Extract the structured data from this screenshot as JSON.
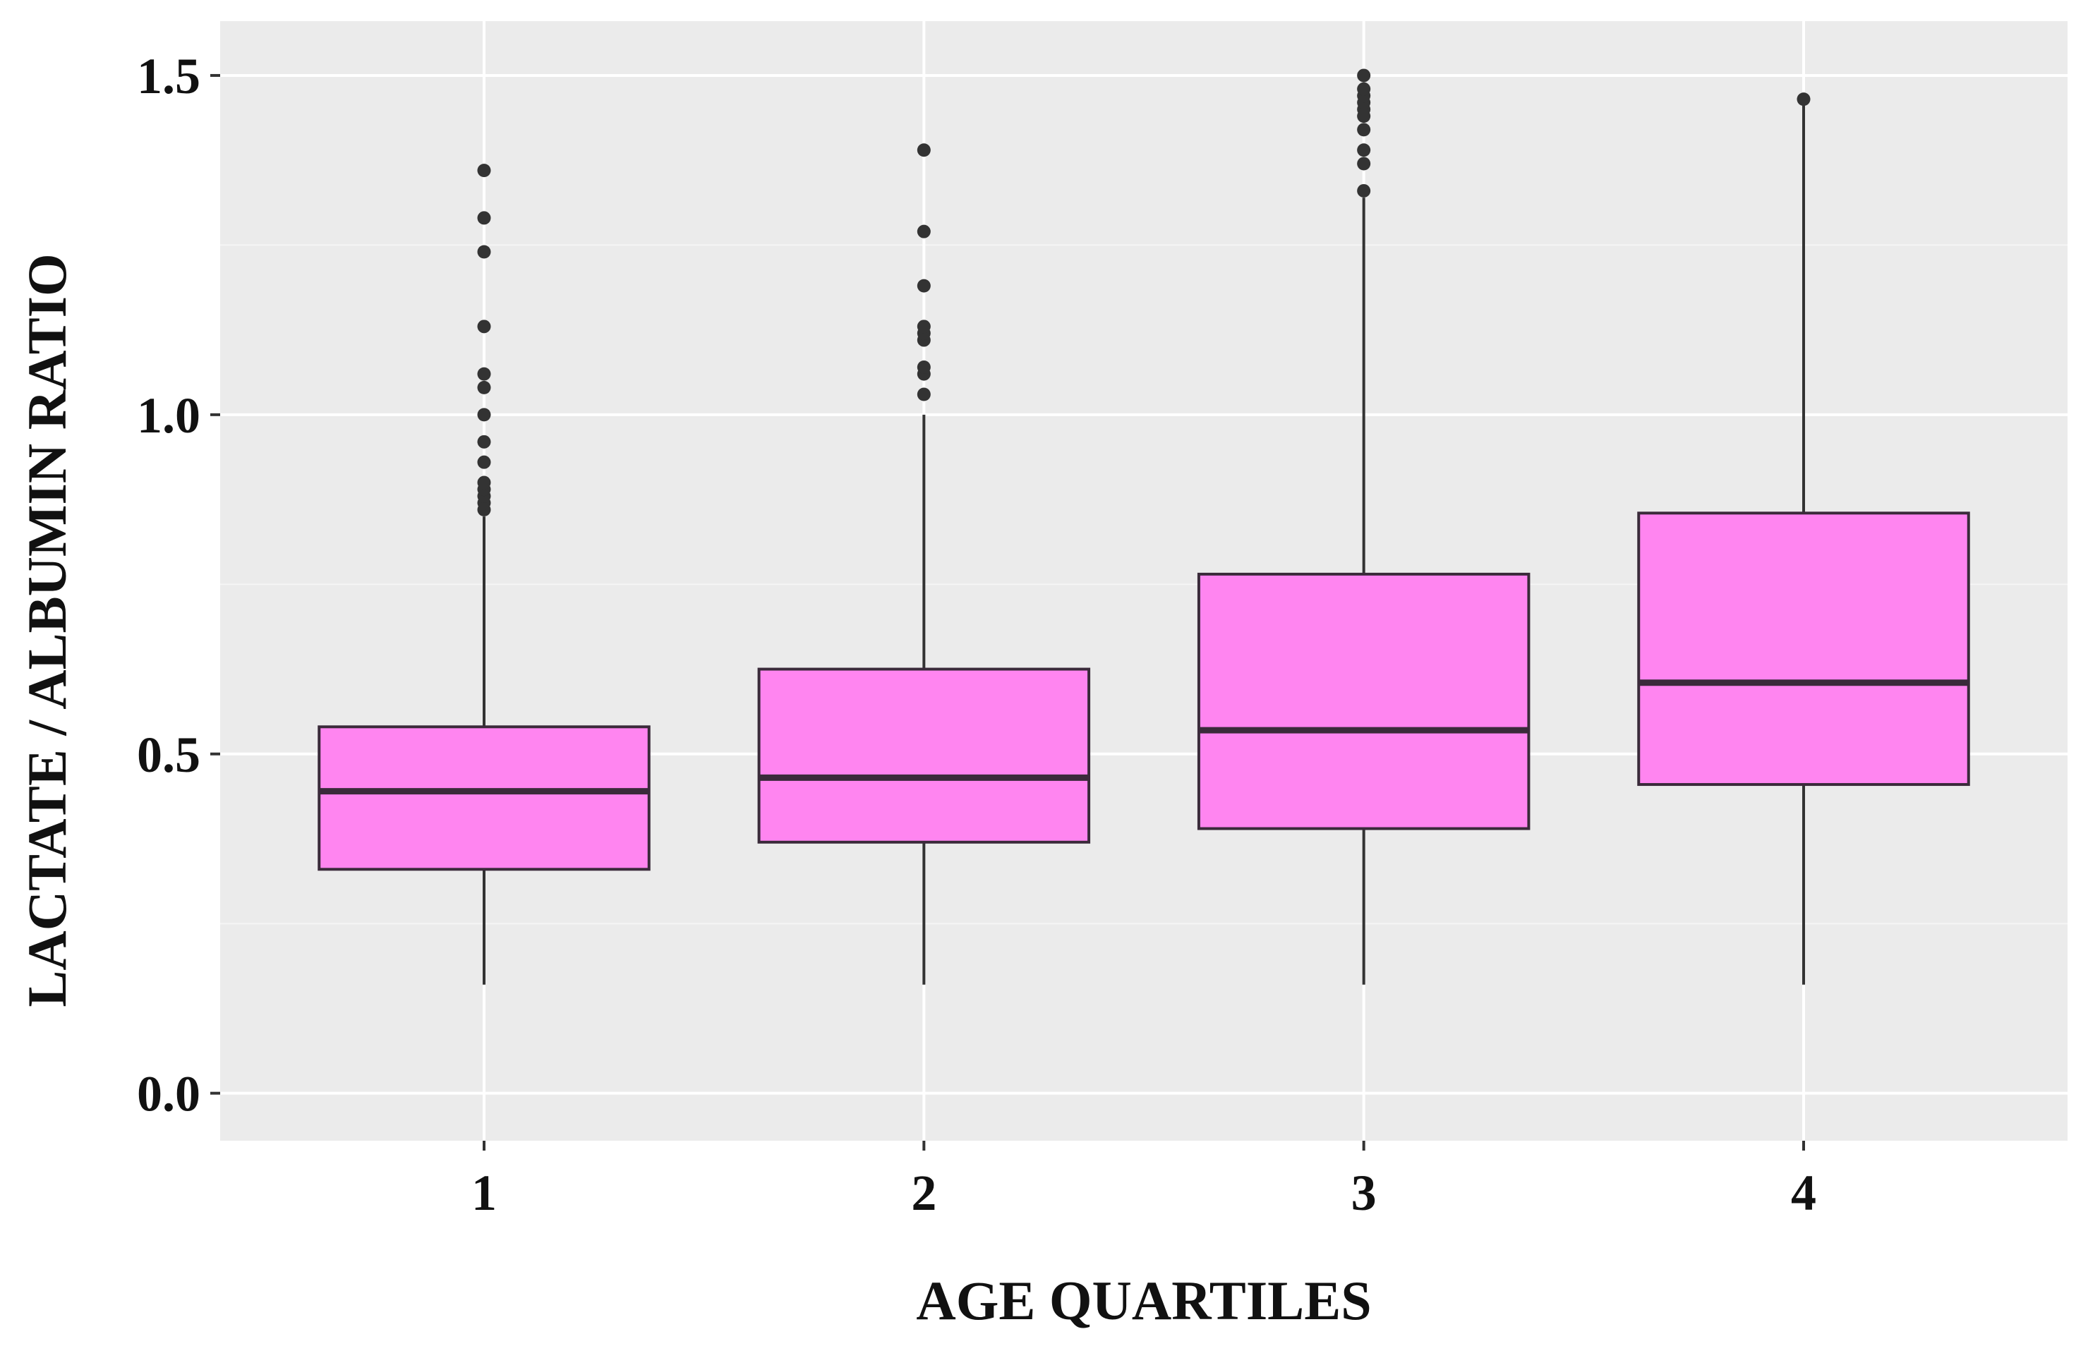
{
  "chart_data": {
    "type": "boxplot",
    "title": "",
    "xlabel": "AGE QUARTILES",
    "ylabel": "LACTATE / ALBUMIN RATIO",
    "ylim": [
      -0.07,
      1.58
    ],
    "yticks": [
      0.0,
      0.5,
      1.0,
      1.5
    ],
    "ytick_labels": [
      "0.0",
      "0.5",
      "1.0",
      "1.5"
    ],
    "categories": [
      "1",
      "2",
      "3",
      "4"
    ],
    "grid": true,
    "legend": "none",
    "boxes": [
      {
        "category": "1",
        "whisker_low": 0.16,
        "q1": 0.33,
        "median": 0.445,
        "q3": 0.54,
        "whisker_high": 0.85,
        "outliers": [
          0.86,
          0.87,
          0.88,
          0.89,
          0.9,
          0.93,
          0.96,
          1.0,
          1.04,
          1.06,
          1.13,
          1.24,
          1.29,
          1.36
        ]
      },
      {
        "category": "2",
        "whisker_low": 0.16,
        "q1": 0.37,
        "median": 0.465,
        "q3": 0.625,
        "whisker_high": 1.0,
        "outliers": [
          1.03,
          1.06,
          1.07,
          1.11,
          1.12,
          1.13,
          1.19,
          1.27,
          1.39
        ]
      },
      {
        "category": "3",
        "whisker_low": 0.16,
        "q1": 0.39,
        "median": 0.535,
        "q3": 0.765,
        "whisker_high": 1.32,
        "outliers": [
          1.33,
          1.37,
          1.39,
          1.42,
          1.44,
          1.45,
          1.46,
          1.47,
          1.48,
          1.5
        ]
      },
      {
        "category": "4",
        "whisker_low": 0.16,
        "q1": 0.455,
        "median": 0.605,
        "q3": 0.855,
        "whisker_high": 1.46,
        "outliers": [
          1.465
        ]
      }
    ],
    "colors": {
      "box_fill": "#FF85F0",
      "box_stroke": "#3A2A3A",
      "median": "#3A2A3A",
      "whisker": "#333333",
      "outlier": "#333333",
      "panel_bg": "#EBEBEB",
      "grid_major": "#FFFFFF",
      "grid_minor": "#F5F5F5"
    }
  }
}
